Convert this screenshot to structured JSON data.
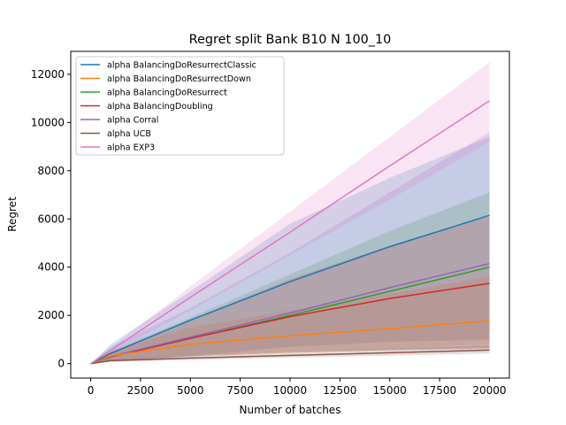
{
  "chart_data": {
    "type": "line",
    "title": "Regret split Bank B10 N 100_10",
    "xlabel": "Number of batches",
    "ylabel": "Regret",
    "xlim": [
      -1000,
      21000
    ],
    "ylim": [
      -600,
      12950
    ],
    "xticks": [
      0,
      2500,
      5000,
      7500,
      10000,
      12500,
      15000,
      17500,
      20000
    ],
    "yticks": [
      0,
      2000,
      4000,
      6000,
      8000,
      10000,
      12000
    ],
    "grid": false,
    "legend_position": "top-left",
    "series": [
      {
        "name": "alpha BalancingDoResurrectClassic",
        "color": "#1f77b4",
        "x": [
          0,
          1000,
          5000,
          10000,
          15000,
          20000
        ],
        "y": [
          0,
          420,
          1800,
          3400,
          4850,
          6150
        ],
        "band_lower": [
          0,
          80,
          300,
          700,
          900,
          1000
        ],
        "band_upper": [
          0,
          800,
          3000,
          5800,
          7700,
          9400
        ]
      },
      {
        "name": "alpha BalancingDoResurrectDown",
        "color": "#ff7f0e",
        "x": [
          0,
          1000,
          5000,
          10000,
          15000,
          20000
        ],
        "y": [
          0,
          320,
          800,
          1150,
          1450,
          1780
        ],
        "band_lower": [
          0,
          150,
          350,
          500,
          650,
          800
        ],
        "band_upper": [
          0,
          500,
          1500,
          2200,
          2900,
          3600
        ]
      },
      {
        "name": "alpha BalancingDoResurrect",
        "color": "#2ca02c",
        "x": [
          0,
          1000,
          5000,
          10000,
          15000,
          20000
        ],
        "y": [
          0,
          280,
          1050,
          2000,
          3000,
          4000
        ],
        "band_lower": [
          0,
          100,
          300,
          450,
          550,
          650
        ],
        "band_upper": [
          0,
          500,
          1900,
          3700,
          5500,
          7100
        ]
      },
      {
        "name": "alpha BalancingDoubling",
        "color": "#d62728",
        "x": [
          0,
          1000,
          5000,
          10000,
          15000,
          20000
        ],
        "y": [
          0,
          280,
          1050,
          1950,
          2700,
          3330
        ],
        "band_lower": [
          0,
          100,
          300,
          450,
          550,
          600
        ],
        "band_upper": [
          0,
          480,
          1800,
          3500,
          4900,
          6100
        ]
      },
      {
        "name": "alpha Corral",
        "color": "#9467bd",
        "x": [
          0,
          1000,
          5000,
          10000,
          15000,
          20000
        ],
        "y": [
          0,
          300,
          1100,
          2100,
          3150,
          4150
        ],
        "band_lower": [
          0,
          120,
          350,
          500,
          600,
          650
        ],
        "band_upper": [
          0,
          700,
          2300,
          4600,
          7100,
          9600
        ]
      },
      {
        "name": "alpha UCB",
        "color": "#8c564b",
        "x": [
          0,
          1000,
          5000,
          10000,
          15000,
          20000
        ],
        "y": [
          0,
          120,
          230,
          340,
          450,
          560
        ],
        "band_lower": [
          0,
          80,
          150,
          250,
          330,
          420
        ],
        "band_upper": [
          0,
          180,
          350,
          500,
          650,
          750
        ]
      },
      {
        "name": "alpha EXP3",
        "color": "#e377c2",
        "x": [
          0,
          1000,
          5000,
          10000,
          15000,
          20000
        ],
        "y": [
          0,
          550,
          2750,
          5450,
          8200,
          10900
        ],
        "band_lower": [
          0,
          440,
          2200,
          4500,
          6800,
          9200
        ],
        "band_upper": [
          0,
          650,
          3200,
          6300,
          9400,
          12500
        ]
      }
    ]
  }
}
